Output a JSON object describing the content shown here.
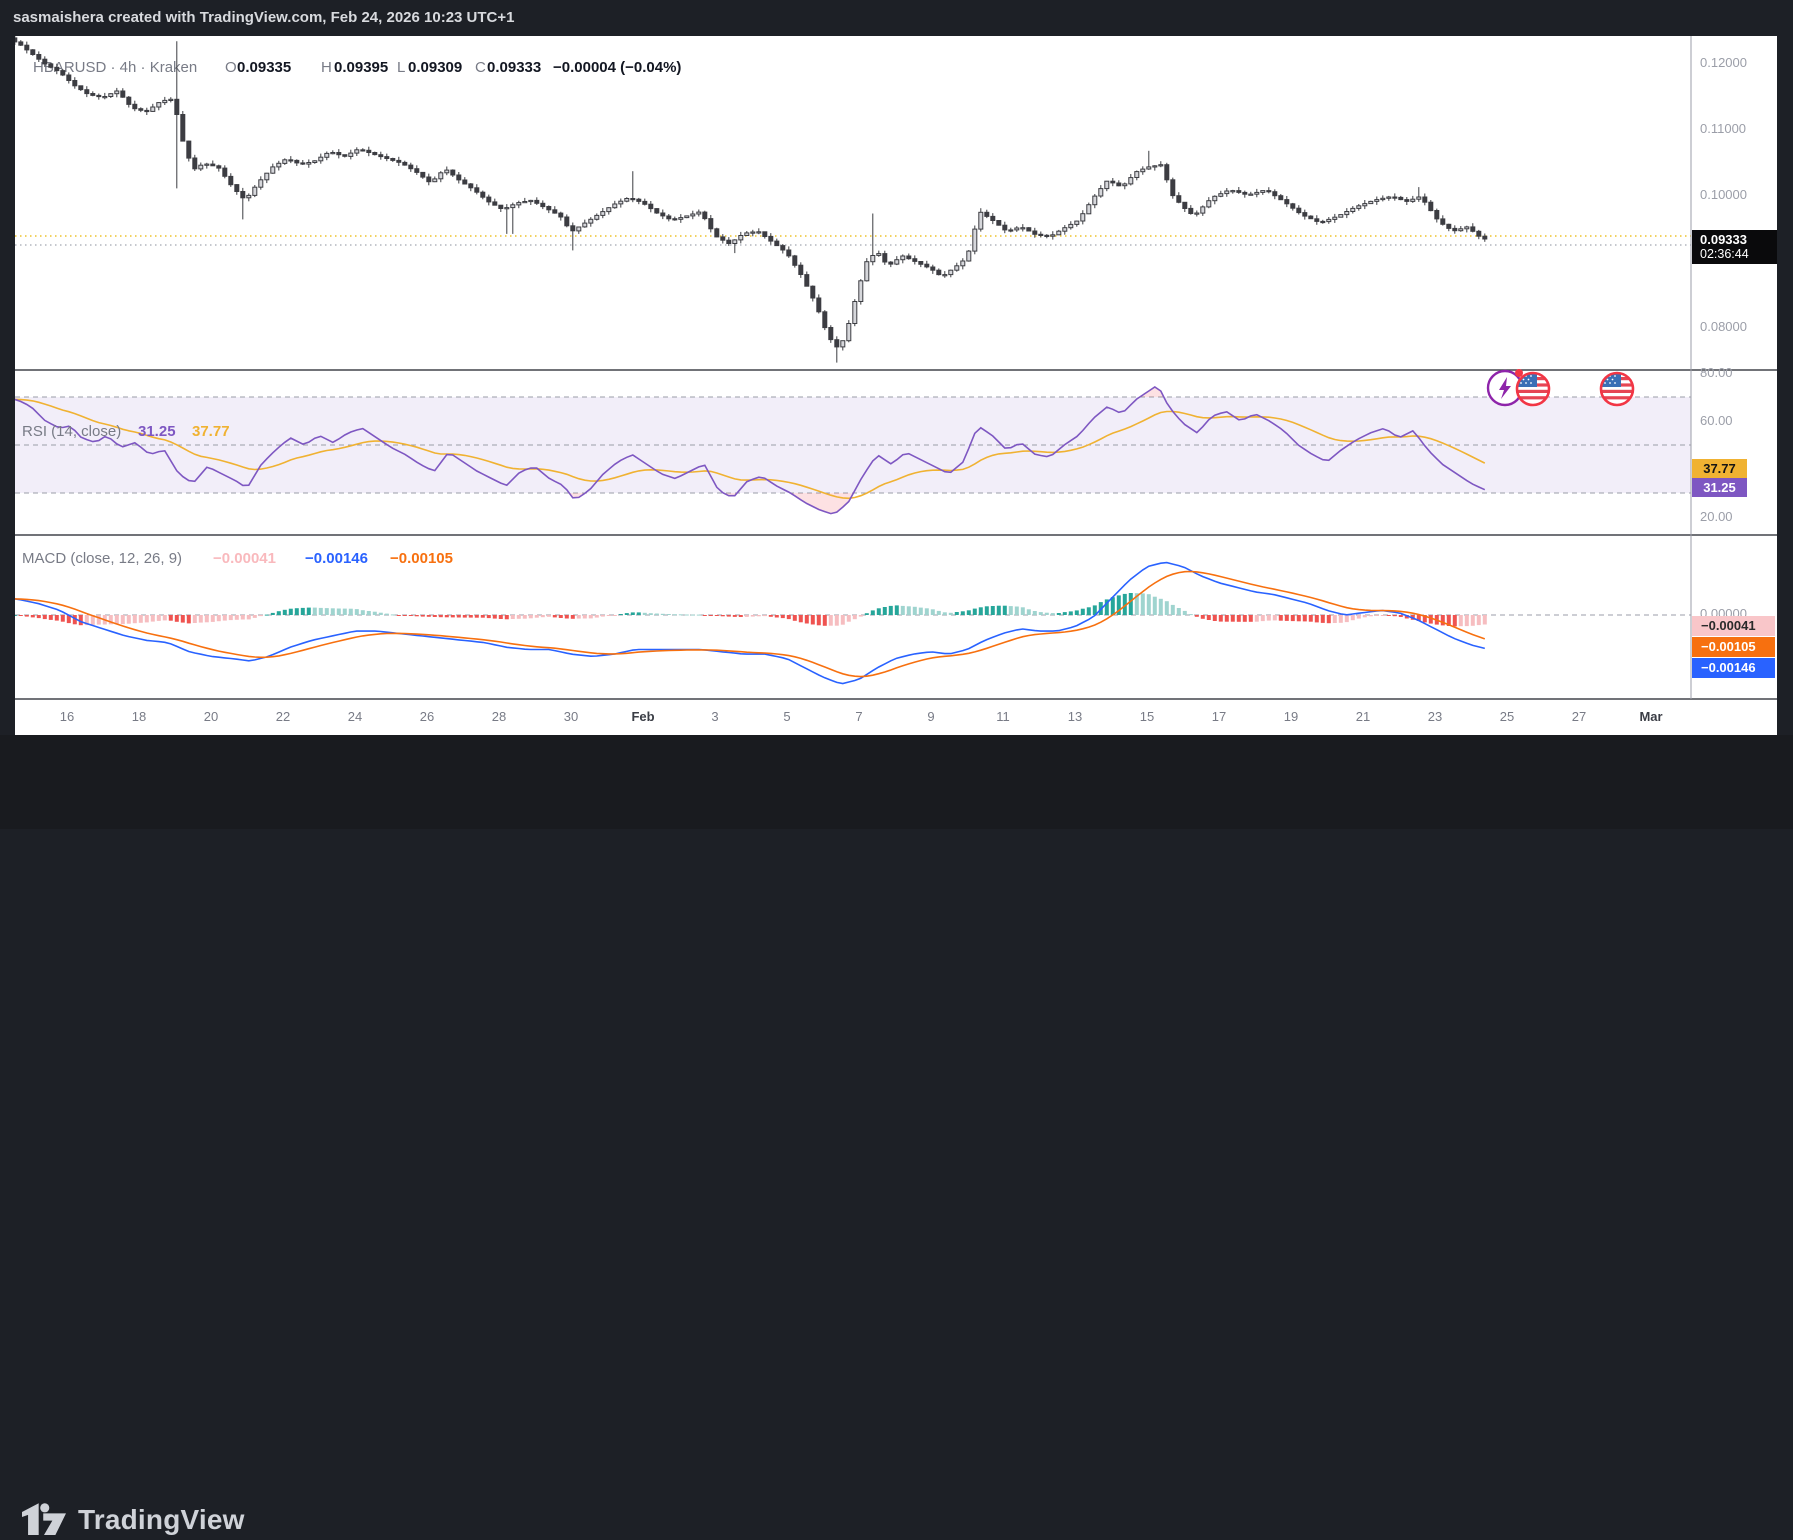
{
  "header": {
    "attribution": "sasmaishera created with TradingView.com, Feb 24, 2026 10:23 UTC+1"
  },
  "symbol_legend": {
    "symbol_line": "HBARUSD · 4h · Kraken",
    "o_key": "O",
    "o_val": "0.09335",
    "h_key": "H",
    "h_val": "0.09395",
    "l_key": "L",
    "l_val": "0.09309",
    "c_key": "C",
    "c_val": "0.09333",
    "change": "−0.00004 (−0.04%)"
  },
  "price_axis": {
    "labels": [
      {
        "text": "0.12000",
        "price": 0.12
      },
      {
        "text": "0.11000",
        "price": 0.11
      },
      {
        "text": "0.10000",
        "price": 0.1
      },
      {
        "text": "0.08000",
        "price": 0.08
      }
    ],
    "last": {
      "price": "0.09333",
      "countdown": "02:36:44"
    }
  },
  "rsi_panel": {
    "legend_title": "RSI (14, close)",
    "value_main": "31.25",
    "value_ma": "37.77",
    "box_main": "31.25",
    "box_ma": "37.77",
    "axis": [
      {
        "text": "80.00",
        "value": 80
      },
      {
        "text": "60.00",
        "value": 60
      },
      {
        "text": "20.00",
        "value": 20
      }
    ]
  },
  "macd_panel": {
    "legend_title": "MACD (close, 12, 26, 9)",
    "hist_value": "−0.00041",
    "macd_value": "−0.00146",
    "signal_value": "−0.00105",
    "zero_label": "0.00000",
    "box_hist": "−0.00041",
    "box_signal": "−0.00105",
    "box_macd": "−0.00146"
  },
  "time_axis": {
    "labels": [
      {
        "text": "16",
        "day": 16,
        "emph": false
      },
      {
        "text": "18",
        "day": 18,
        "emph": false
      },
      {
        "text": "20",
        "day": 20,
        "emph": false
      },
      {
        "text": "22",
        "day": 22,
        "emph": false
      },
      {
        "text": "24",
        "day": 24,
        "emph": false
      },
      {
        "text": "26",
        "day": 26,
        "emph": false
      },
      {
        "text": "28",
        "day": 28,
        "emph": false
      },
      {
        "text": "30",
        "day": 30,
        "emph": false
      },
      {
        "text": "Feb",
        "day": 32,
        "emph": true
      },
      {
        "text": "3",
        "day": 34,
        "emph": false
      },
      {
        "text": "5",
        "day": 36,
        "emph": false
      },
      {
        "text": "7",
        "day": 38,
        "emph": false
      },
      {
        "text": "9",
        "day": 40,
        "emph": false
      },
      {
        "text": "11",
        "day": 42,
        "emph": false
      },
      {
        "text": "13",
        "day": 44,
        "emph": false
      },
      {
        "text": "15",
        "day": 46,
        "emph": false
      },
      {
        "text": "17",
        "day": 48,
        "emph": false
      },
      {
        "text": "19",
        "day": 50,
        "emph": false
      },
      {
        "text": "21",
        "day": 52,
        "emph": false
      },
      {
        "text": "23",
        "day": 54,
        "emph": false
      },
      {
        "text": "25",
        "day": 56,
        "emph": false
      },
      {
        "text": "27",
        "day": 58,
        "emph": false
      },
      {
        "text": "Mar",
        "day": 60,
        "emph": true
      }
    ]
  },
  "footer": {
    "brand": "TradingView"
  },
  "colors": {
    "up_candle": "#d6d7db",
    "down_candle": "#3c3d42",
    "rsi_line": "#7e57c2",
    "rsi_ma_line": "#f0b232",
    "macd_line": "#2962ff",
    "signal_line": "#f7700f",
    "hist_pos": "#26a69a",
    "hist_pos_weak": "#9fd4cf",
    "hist_neg": "#ef5350",
    "hist_neg_weak": "#f6bdc0",
    "prev_close_line": "#edc32b",
    "price_line": "#b2b5be",
    "event_ring_purple": "#8e24aa",
    "flag_ring_red": "#f23645"
  },
  "chart_data": {
    "type": "candlestick",
    "symbol": "HBARUSD",
    "interval": "4h",
    "exchange": "Kraken",
    "ohlc_current": {
      "open": 0.09335,
      "high": 0.09395,
      "low": 0.09309,
      "close": 0.09333,
      "change": -4e-05,
      "change_pct": -0.04
    },
    "x_axis_note": "t is day index: 14.6=Jan 14.6 ... 32=Feb 1 ... 55.4=Feb 24.4; 6 candles per day (4h)",
    "price_range_visible": [
      0.0734,
      0.1241
    ],
    "price_path": [
      [
        14.6,
        0.1232
      ],
      [
        15.0,
        0.1215
      ],
      [
        15.4,
        0.1198
      ],
      [
        15.8,
        0.1186
      ],
      [
        16.2,
        0.1166
      ],
      [
        16.6,
        0.1152
      ],
      [
        17.0,
        0.1148
      ],
      [
        17.4,
        0.1158
      ],
      [
        17.8,
        0.1132
      ],
      [
        18.2,
        0.1126
      ],
      [
        18.6,
        0.1142
      ],
      [
        18.97,
        0.1146
      ],
      [
        19.15,
        0.1092
      ],
      [
        19.5,
        0.1038
      ],
      [
        19.8,
        0.1048
      ],
      [
        20.2,
        0.1042
      ],
      [
        20.6,
        0.1012
      ],
      [
        20.95,
        0.0992
      ],
      [
        21.3,
        0.1018
      ],
      [
        21.7,
        0.1042
      ],
      [
        22.1,
        0.1055
      ],
      [
        22.5,
        0.1046
      ],
      [
        22.9,
        0.1052
      ],
      [
        23.3,
        0.1066
      ],
      [
        23.7,
        0.1058
      ],
      [
        24.1,
        0.107
      ],
      [
        24.5,
        0.1062
      ],
      [
        24.9,
        0.1055
      ],
      [
        25.3,
        0.1048
      ],
      [
        25.7,
        0.1035
      ],
      [
        26.1,
        0.1018
      ],
      [
        26.5,
        0.104
      ],
      [
        26.9,
        0.1022
      ],
      [
        27.3,
        0.1008
      ],
      [
        27.7,
        0.099
      ],
      [
        28.1,
        0.0978
      ],
      [
        28.5,
        0.0988
      ],
      [
        28.9,
        0.0992
      ],
      [
        29.3,
        0.098
      ],
      [
        29.7,
        0.0968
      ],
      [
        30.0,
        0.0944
      ],
      [
        30.4,
        0.0958
      ],
      [
        30.8,
        0.0972
      ],
      [
        31.2,
        0.0986
      ],
      [
        31.6,
        0.0996
      ],
      [
        32.0,
        0.0988
      ],
      [
        32.4,
        0.0972
      ],
      [
        32.8,
        0.0962
      ],
      [
        33.2,
        0.0968
      ],
      [
        33.6,
        0.0975
      ],
      [
        34.0,
        0.0938
      ],
      [
        34.4,
        0.0926
      ],
      [
        34.8,
        0.0942
      ],
      [
        35.2,
        0.0945
      ],
      [
        35.6,
        0.0928
      ],
      [
        36.0,
        0.0912
      ],
      [
        36.4,
        0.0878
      ],
      [
        36.8,
        0.0835
      ],
      [
        37.1,
        0.0792
      ],
      [
        37.35,
        0.0768
      ],
      [
        37.6,
        0.0782
      ],
      [
        37.9,
        0.0842
      ],
      [
        38.2,
        0.0898
      ],
      [
        38.5,
        0.0915
      ],
      [
        38.8,
        0.0892
      ],
      [
        39.2,
        0.0908
      ],
      [
        39.6,
        0.0898
      ],
      [
        40.0,
        0.0888
      ],
      [
        40.3,
        0.0876
      ],
      [
        40.7,
        0.0892
      ],
      [
        41.0,
        0.0905
      ],
      [
        41.35,
        0.0975
      ],
      [
        41.7,
        0.0962
      ],
      [
        42.1,
        0.0945
      ],
      [
        42.5,
        0.0952
      ],
      [
        42.9,
        0.094
      ],
      [
        43.3,
        0.0937
      ],
      [
        43.7,
        0.095
      ],
      [
        44.1,
        0.0962
      ],
      [
        44.5,
        0.0995
      ],
      [
        44.9,
        0.1022
      ],
      [
        45.3,
        0.1012
      ],
      [
        45.7,
        0.1035
      ],
      [
        46.0,
        0.1042
      ],
      [
        46.4,
        0.1046
      ],
      [
        46.7,
        0.1
      ],
      [
        47.0,
        0.0982
      ],
      [
        47.3,
        0.0968
      ],
      [
        47.8,
        0.0996
      ],
      [
        48.3,
        0.1008
      ],
      [
        48.8,
        0.1
      ],
      [
        49.3,
        0.1008
      ],
      [
        49.8,
        0.099
      ],
      [
        50.3,
        0.097
      ],
      [
        50.8,
        0.0958
      ],
      [
        51.3,
        0.0968
      ],
      [
        51.8,
        0.0982
      ],
      [
        52.3,
        0.0992
      ],
      [
        52.8,
        0.0998
      ],
      [
        53.2,
        0.099
      ],
      [
        53.6,
        0.0998
      ],
      [
        54.1,
        0.096
      ],
      [
        54.5,
        0.0945
      ],
      [
        54.9,
        0.0952
      ],
      [
        55.2,
        0.0938
      ],
      [
        55.4,
        0.0933
      ]
    ],
    "special_wicks": [
      {
        "t": 19.05,
        "high": 0.1233,
        "low": 0.101
      },
      {
        "t": 20.95,
        "low": 0.0963
      },
      {
        "t": 28.3,
        "low": 0.0941
      },
      {
        "t": 30.0,
        "low": 0.0916
      },
      {
        "t": 31.75,
        "high": 0.1036
      },
      {
        "t": 34.5,
        "low": 0.0912
      },
      {
        "t": 37.35,
        "low": 0.0746
      },
      {
        "t": 38.35,
        "high": 0.0972
      },
      {
        "t": 41.35,
        "high": 0.098
      },
      {
        "t": 46.1,
        "high": 0.1067
      },
      {
        "t": 53.6,
        "high": 0.1012
      }
    ],
    "rsi": {
      "period": 14,
      "source": "close",
      "current": 31.25,
      "ma_current": 37.77,
      "bands": [
        70,
        50,
        30
      ],
      "range": [
        20,
        80
      ],
      "path": [
        [
          14.6,
          69
        ],
        [
          15.0,
          66
        ],
        [
          15.4,
          60
        ],
        [
          15.8,
          57
        ],
        [
          16.1,
          58
        ],
        [
          16.4,
          53
        ],
        [
          16.8,
          51
        ],
        [
          17.1,
          54
        ],
        [
          17.5,
          49
        ],
        [
          17.9,
          51
        ],
        [
          18.3,
          46
        ],
        [
          18.7,
          48
        ],
        [
          19.1,
          38
        ],
        [
          19.5,
          34
        ],
        [
          19.9,
          41
        ],
        [
          20.3,
          38
        ],
        [
          20.7,
          35
        ],
        [
          21.0,
          32
        ],
        [
          21.4,
          42
        ],
        [
          21.8,
          48
        ],
        [
          22.2,
          53
        ],
        [
          22.6,
          50
        ],
        [
          23.0,
          54
        ],
        [
          23.4,
          51
        ],
        [
          23.8,
          55
        ],
        [
          24.2,
          57
        ],
        [
          24.6,
          53
        ],
        [
          25.0,
          49
        ],
        [
          25.4,
          46
        ],
        [
          25.8,
          42
        ],
        [
          26.2,
          39
        ],
        [
          26.6,
          47
        ],
        [
          27.0,
          43
        ],
        [
          27.4,
          39
        ],
        [
          27.8,
          36
        ],
        [
          28.2,
          33
        ],
        [
          28.6,
          39
        ],
        [
          29.0,
          41
        ],
        [
          29.4,
          36
        ],
        [
          29.8,
          33
        ],
        [
          30.1,
          27
        ],
        [
          30.5,
          31
        ],
        [
          30.9,
          38
        ],
        [
          31.3,
          43
        ],
        [
          31.7,
          46
        ],
        [
          32.1,
          42
        ],
        [
          32.5,
          38
        ],
        [
          32.9,
          36
        ],
        [
          33.3,
          39
        ],
        [
          33.7,
          42
        ],
        [
          34.1,
          31
        ],
        [
          34.5,
          28
        ],
        [
          34.9,
          35
        ],
        [
          35.3,
          37
        ],
        [
          35.7,
          33
        ],
        [
          36.1,
          30
        ],
        [
          36.5,
          26
        ],
        [
          36.9,
          23
        ],
        [
          37.3,
          21
        ],
        [
          37.7,
          26
        ],
        [
          38.1,
          37
        ],
        [
          38.5,
          46
        ],
        [
          38.9,
          42
        ],
        [
          39.3,
          47
        ],
        [
          39.7,
          44
        ],
        [
          40.1,
          41
        ],
        [
          40.5,
          38
        ],
        [
          40.9,
          43
        ],
        [
          41.3,
          58
        ],
        [
          41.7,
          54
        ],
        [
          42.1,
          48
        ],
        [
          42.5,
          51
        ],
        [
          42.9,
          46
        ],
        [
          43.3,
          45
        ],
        [
          43.7,
          50
        ],
        [
          44.1,
          54
        ],
        [
          44.5,
          61
        ],
        [
          44.9,
          66
        ],
        [
          45.3,
          63
        ],
        [
          45.7,
          69
        ],
        [
          46.0,
          72
        ],
        [
          46.3,
          75
        ],
        [
          46.6,
          66
        ],
        [
          47.0,
          59
        ],
        [
          47.4,
          55
        ],
        [
          47.8,
          62
        ],
        [
          48.2,
          64
        ],
        [
          48.6,
          60
        ],
        [
          49.0,
          63
        ],
        [
          49.4,
          60
        ],
        [
          49.8,
          56
        ],
        [
          50.2,
          50
        ],
        [
          50.6,
          46
        ],
        [
          51.0,
          43
        ],
        [
          51.4,
          48
        ],
        [
          51.8,
          52
        ],
        [
          52.2,
          55
        ],
        [
          52.6,
          57
        ],
        [
          53.0,
          53
        ],
        [
          53.4,
          56
        ],
        [
          53.8,
          48
        ],
        [
          54.2,
          42
        ],
        [
          54.6,
          38
        ],
        [
          55.0,
          34
        ],
        [
          55.4,
          31.25
        ]
      ]
    },
    "macd": {
      "params": [
        12,
        26,
        9
      ],
      "source": "close",
      "macd_current": -0.00146,
      "signal_current": -0.00105,
      "hist_current": -0.00041,
      "path": [
        [
          14.6,
          0.0007
        ],
        [
          15.2,
          0.0005
        ],
        [
          15.8,
          0.0002
        ],
        [
          16.4,
          -0.0003
        ],
        [
          17.0,
          -0.0006
        ],
        [
          17.6,
          -0.0009
        ],
        [
          18.2,
          -0.0011
        ],
        [
          18.8,
          -0.0012
        ],
        [
          19.4,
          -0.0016
        ],
        [
          20.0,
          -0.0018
        ],
        [
          20.6,
          -0.0019
        ],
        [
          21.1,
          -0.002
        ],
        [
          21.6,
          -0.0018
        ],
        [
          22.2,
          -0.0014
        ],
        [
          22.8,
          -0.0011
        ],
        [
          23.4,
          -0.0009
        ],
        [
          24.0,
          -0.0007
        ],
        [
          24.6,
          -0.0007
        ],
        [
          25.2,
          -0.0008
        ],
        [
          25.8,
          -0.0009
        ],
        [
          26.4,
          -0.001
        ],
        [
          27.0,
          -0.0011
        ],
        [
          27.6,
          -0.0012
        ],
        [
          28.2,
          -0.0014
        ],
        [
          28.8,
          -0.0015
        ],
        [
          29.4,
          -0.0015
        ],
        [
          30.0,
          -0.0017
        ],
        [
          30.6,
          -0.0018
        ],
        [
          31.2,
          -0.0017
        ],
        [
          31.8,
          -0.0015
        ],
        [
          32.4,
          -0.0015
        ],
        [
          33.0,
          -0.0015
        ],
        [
          33.6,
          -0.0015
        ],
        [
          34.2,
          -0.0016
        ],
        [
          34.8,
          -0.0017
        ],
        [
          35.4,
          -0.0017
        ],
        [
          36.0,
          -0.0019
        ],
        [
          36.5,
          -0.0023
        ],
        [
          37.0,
          -0.0027
        ],
        [
          37.5,
          -0.003
        ],
        [
          38.0,
          -0.0028
        ],
        [
          38.5,
          -0.0023
        ],
        [
          39.0,
          -0.0019
        ],
        [
          39.5,
          -0.0017
        ],
        [
          40.0,
          -0.0016
        ],
        [
          40.5,
          -0.0017
        ],
        [
          41.0,
          -0.0015
        ],
        [
          41.5,
          -0.0011
        ],
        [
          42.0,
          -0.0008
        ],
        [
          42.5,
          -0.0006
        ],
        [
          43.0,
          -0.0007
        ],
        [
          43.5,
          -0.0007
        ],
        [
          44.0,
          -0.0005
        ],
        [
          44.5,
          -0.0001
        ],
        [
          45.0,
          0.0007
        ],
        [
          45.5,
          0.0015
        ],
        [
          46.0,
          0.0021
        ],
        [
          46.5,
          0.0023
        ],
        [
          47.0,
          0.0021
        ],
        [
          47.5,
          0.0017
        ],
        [
          48.0,
          0.0014
        ],
        [
          48.5,
          0.0012
        ],
        [
          49.0,
          0.001
        ],
        [
          49.5,
          0.0009
        ],
        [
          50.0,
          0.0007
        ],
        [
          50.5,
          0.0005
        ],
        [
          51.0,
          0.0002
        ],
        [
          51.5,
          0.0
        ],
        [
          52.0,
          0.0001
        ],
        [
          52.5,
          0.0002
        ],
        [
          53.0,
          0.0001
        ],
        [
          53.5,
          -0.0002
        ],
        [
          54.0,
          -0.0006
        ],
        [
          54.5,
          -0.001
        ],
        [
          55.0,
          -0.0013
        ],
        [
          55.4,
          -0.00146
        ]
      ]
    }
  }
}
